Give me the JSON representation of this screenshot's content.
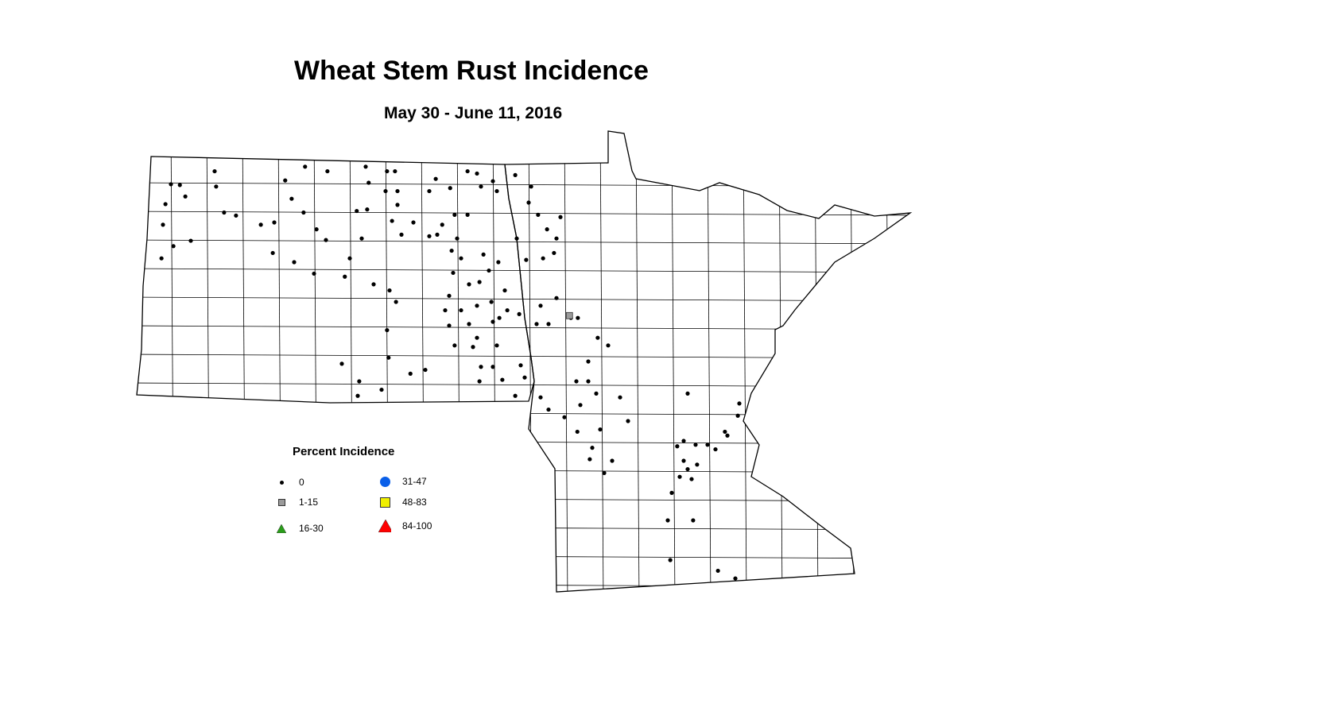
{
  "title": "Wheat Stem Rust Incidence",
  "subtitle": "May 30 - June 11, 2016",
  "legend": {
    "title": "Percent Incidence",
    "classes": [
      {
        "label": "0",
        "symbol": "small-dot",
        "color": "#000000"
      },
      {
        "label": "1-15",
        "symbol": "square",
        "color": "#9b9b9b"
      },
      {
        "label": "16-30",
        "symbol": "triangle",
        "color": "#2a9d1a"
      },
      {
        "label": "31-47",
        "symbol": "circle",
        "color": "#0a5fe8"
      },
      {
        "label": "48-83",
        "symbol": "square",
        "color": "#f0f000"
      },
      {
        "label": "84-100",
        "symbol": "triangle",
        "color": "#ff0000"
      }
    ]
  },
  "regions": [
    "North Dakota",
    "Minnesota"
  ],
  "observations": {
    "fields": [
      "lon",
      "lat",
      "class"
    ],
    "points": [
      [
        -103.57,
        48.72,
        0
      ],
      [
        -103.39,
        48.71,
        0
      ],
      [
        -103.28,
        48.56,
        0
      ],
      [
        -103.68,
        48.46,
        0
      ],
      [
        -103.73,
        48.19,
        0
      ],
      [
        -103.52,
        47.91,
        0
      ],
      [
        -103.17,
        47.98,
        0
      ],
      [
        -103.76,
        47.75,
        0
      ],
      [
        -102.69,
        48.89,
        0
      ],
      [
        -102.66,
        48.69,
        0
      ],
      [
        -102.5,
        48.35,
        0
      ],
      [
        -102.26,
        48.31,
        0
      ],
      [
        -101.76,
        48.19,
        0
      ],
      [
        -101.49,
        48.22,
        0
      ],
      [
        -101.52,
        47.82,
        0
      ],
      [
        -101.09,
        47.7,
        0
      ],
      [
        -100.69,
        47.55,
        0
      ],
      [
        -100.87,
        48.95,
        0
      ],
      [
        -100.42,
        48.89,
        0
      ],
      [
        -101.27,
        48.77,
        0
      ],
      [
        -101.14,
        48.53,
        0
      ],
      [
        -100.9,
        48.35,
        0
      ],
      [
        -100.64,
        48.13,
        0
      ],
      [
        -100.45,
        47.99,
        0
      ],
      [
        -100.07,
        47.51,
        0
      ],
      [
        -99.97,
        47.75,
        0
      ],
      [
        -99.65,
        48.95,
        0
      ],
      [
        -99.59,
        48.74,
        0
      ],
      [
        -99.22,
        48.89,
        0
      ],
      [
        -99.06,
        48.89,
        0
      ],
      [
        -99.25,
        48.63,
        0
      ],
      [
        -99.01,
        48.63,
        0
      ],
      [
        -99.01,
        48.45,
        0
      ],
      [
        -99.83,
        48.37,
        0
      ],
      [
        -99.62,
        48.39,
        0
      ],
      [
        -99.73,
        48.01,
        0
      ],
      [
        -99.12,
        48.24,
        0
      ],
      [
        -98.93,
        48.06,
        0
      ],
      [
        -98.69,
        48.22,
        0
      ],
      [
        -98.37,
        48.04,
        0
      ],
      [
        -98.21,
        48.06,
        0
      ],
      [
        -98.24,
        48.79,
        0
      ],
      [
        -98.37,
        48.63,
        0
      ],
      [
        -97.95,
        48.67,
        0
      ],
      [
        -97.6,
        48.89,
        0
      ],
      [
        -97.41,
        48.86,
        0
      ],
      [
        -97.33,
        48.69,
        0
      ],
      [
        -97.09,
        48.76,
        0
      ],
      [
        -97.01,
        48.63,
        0
      ],
      [
        -96.64,
        48.84,
        0
      ],
      [
        -96.32,
        48.69,
        0
      ],
      [
        -96.37,
        48.48,
        0
      ],
      [
        -96.18,
        48.32,
        0
      ],
      [
        -95.73,
        48.29,
        0
      ],
      [
        -96.0,
        48.13,
        0
      ],
      [
        -95.81,
        48.01,
        0
      ],
      [
        -95.86,
        47.82,
        0
      ],
      [
        -96.08,
        47.75,
        0
      ],
      [
        -96.42,
        47.73,
        0
      ],
      [
        -96.61,
        48.01,
        0
      ],
      [
        -97.86,
        48.32,
        0
      ],
      [
        -97.6,
        48.32,
        0
      ],
      [
        -98.11,
        48.19,
        0
      ],
      [
        -97.81,
        48.01,
        0
      ],
      [
        -97.92,
        47.85,
        0
      ],
      [
        -97.73,
        47.75,
        0
      ],
      [
        -97.28,
        47.8,
        0
      ],
      [
        -96.98,
        47.7,
        0
      ],
      [
        -97.17,
        47.59,
        0
      ],
      [
        -97.36,
        47.44,
        0
      ],
      [
        -97.57,
        47.41,
        0
      ],
      [
        -97.89,
        47.56,
        0
      ],
      [
        -97.97,
        47.26,
        0
      ],
      [
        -97.73,
        47.07,
        0
      ],
      [
        -97.41,
        47.13,
        0
      ],
      [
        -97.12,
        47.18,
        0
      ],
      [
        -96.85,
        47.33,
        0
      ],
      [
        -96.8,
        47.07,
        0
      ],
      [
        -96.96,
        46.97,
        0
      ],
      [
        -98.05,
        47.07,
        0
      ],
      [
        -97.97,
        46.87,
        0
      ],
      [
        -97.57,
        46.89,
        0
      ],
      [
        -97.41,
        46.71,
        0
      ],
      [
        -97.09,
        46.92,
        0
      ],
      [
        -97.86,
        46.61,
        0
      ],
      [
        -97.49,
        46.59,
        0
      ],
      [
        -97.01,
        46.61,
        0
      ],
      [
        -96.56,
        47.02,
        0
      ],
      [
        -96.21,
        46.89,
        0
      ],
      [
        -96.13,
        47.13,
        0
      ],
      [
        -95.97,
        46.89,
        0
      ],
      [
        -95.81,
        47.23,
        0
      ],
      [
        -95.52,
        46.97,
        0
      ],
      [
        -99.17,
        47.33,
        0
      ],
      [
        -99.04,
        47.18,
        0
      ],
      [
        -99.49,
        47.41,
        0
      ],
      [
        -99.22,
        46.81,
        0
      ],
      [
        -99.19,
        46.45,
        0
      ],
      [
        -100.13,
        46.37,
        0
      ],
      [
        -99.78,
        46.14,
        0
      ],
      [
        -99.81,
        45.95,
        0
      ],
      [
        -99.33,
        46.03,
        0
      ],
      [
        -98.75,
        46.24,
        0
      ],
      [
        -98.45,
        46.29,
        0
      ],
      [
        -97.33,
        46.33,
        0
      ],
      [
        -97.09,
        46.33,
        0
      ],
      [
        -97.36,
        46.14,
        0
      ],
      [
        -96.9,
        46.16,
        0
      ],
      [
        -96.53,
        46.35,
        0
      ],
      [
        -96.45,
        46.19,
        0
      ],
      [
        -96.64,
        45.95,
        0
      ],
      [
        -96.13,
        45.93,
        0
      ],
      [
        -95.97,
        45.77,
        0
      ],
      [
        -95.38,
        46.97,
        0
      ],
      [
        -94.98,
        46.71,
        0
      ],
      [
        -94.77,
        46.61,
        0
      ],
      [
        -95.17,
        46.4,
        0
      ],
      [
        -95.41,
        46.14,
        0
      ],
      [
        -95.17,
        46.14,
        0
      ],
      [
        -95.01,
        45.98,
        0
      ],
      [
        -95.33,
        45.83,
        0
      ],
      [
        -94.53,
        45.93,
        0
      ],
      [
        -95.65,
        45.67,
        0
      ],
      [
        -95.39,
        45.48,
        0
      ],
      [
        -94.93,
        45.51,
        0
      ],
      [
        -94.37,
        45.62,
        0
      ],
      [
        -95.09,
        45.27,
        0
      ],
      [
        -95.14,
        45.12,
        0
      ],
      [
        -94.69,
        45.1,
        0
      ],
      [
        -94.85,
        44.94,
        0
      ],
      [
        -93.17,
        45.98,
        0
      ],
      [
        -92.13,
        45.85,
        0
      ],
      [
        -92.16,
        45.69,
        0
      ],
      [
        -92.42,
        45.48,
        0
      ],
      [
        -92.37,
        45.43,
        0
      ],
      [
        -93.38,
        45.29,
        0
      ],
      [
        -93.25,
        45.36,
        0
      ],
      [
        -93.01,
        45.31,
        0
      ],
      [
        -92.77,
        45.31,
        0
      ],
      [
        -93.25,
        45.1,
        0
      ],
      [
        -93.17,
        44.99,
        0
      ],
      [
        -92.98,
        45.05,
        0
      ],
      [
        -93.33,
        44.89,
        0
      ],
      [
        -93.09,
        44.86,
        0
      ],
      [
        -93.49,
        44.68,
        0
      ],
      [
        -92.61,
        45.25,
        0
      ],
      [
        -93.57,
        44.32,
        0
      ],
      [
        -93.06,
        44.32,
        0
      ],
      [
        -93.52,
        43.8,
        0
      ],
      [
        -92.56,
        43.66,
        0
      ],
      [
        -92.21,
        43.56,
        0
      ],
      [
        -95.55,
        47.0,
        1
      ]
    ]
  }
}
